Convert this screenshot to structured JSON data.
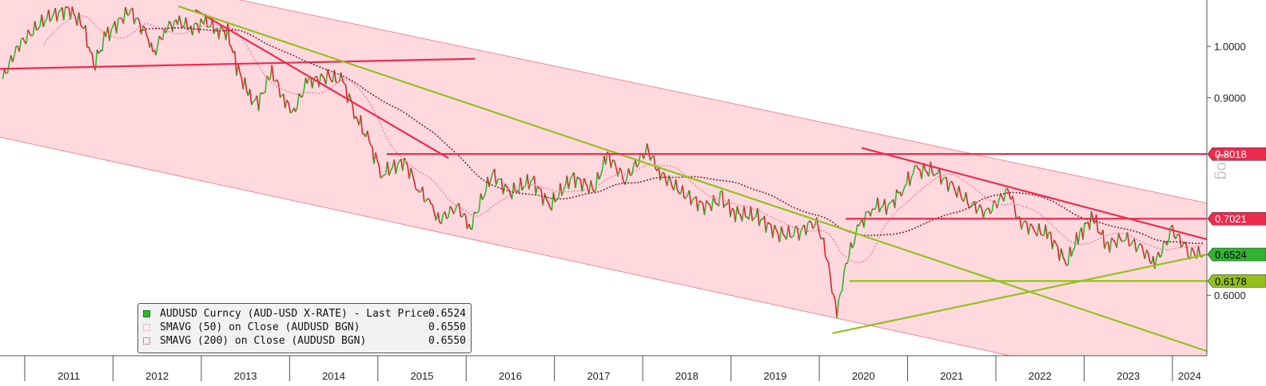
{
  "chart_data": {
    "type": "line",
    "title": "",
    "xlabel": "",
    "ylabel": "",
    "x_ticks": [
      "2011",
      "2012",
      "2013",
      "2014",
      "2015",
      "2016",
      "2017",
      "2018",
      "2019",
      "2020",
      "2021",
      "2022",
      "2023",
      "2024"
    ],
    "y_ticks": [
      "1.0000",
      "0.9000",
      "0.6000"
    ],
    "y_log_scale": true,
    "xlim": [
      2010.72,
      2024.39
    ],
    "ylim": [
      0.53,
      1.1
    ],
    "grid": false,
    "legend_position": "bottom-left",
    "side_label": "Log",
    "price_series": {
      "name": "AUDUSD Curncy (AUD-USD X-RATE) - Last Price",
      "color": "#2fb52f",
      "down_color": "#e0202a",
      "points": [
        [
          2010.75,
          0.935
        ],
        [
          2010.92,
          1.0
        ],
        [
          2011.25,
          1.06
        ],
        [
          2011.5,
          1.08
        ],
        [
          2011.67,
          1.04
        ],
        [
          2011.78,
          0.96
        ],
        [
          2011.92,
          1.02
        ],
        [
          2012.1,
          1.06
        ],
        [
          2012.2,
          1.075
        ],
        [
          2012.4,
          1.02
        ],
        [
          2012.45,
          0.98
        ],
        [
          2012.6,
          1.04
        ],
        [
          2012.75,
          1.05
        ],
        [
          2012.9,
          1.04
        ],
        [
          2013.05,
          1.05
        ],
        [
          2013.2,
          1.035
        ],
        [
          2013.3,
          1.03
        ],
        [
          2013.4,
          0.96
        ],
        [
          2013.55,
          0.9
        ],
        [
          2013.65,
          0.89
        ],
        [
          2013.8,
          0.95
        ],
        [
          2013.95,
          0.89
        ],
        [
          2014.05,
          0.875
        ],
        [
          2014.2,
          0.93
        ],
        [
          2014.45,
          0.94
        ],
        [
          2014.6,
          0.93
        ],
        [
          2014.75,
          0.87
        ],
        [
          2014.9,
          0.82
        ],
        [
          2015.05,
          0.77
        ],
        [
          2015.3,
          0.79
        ],
        [
          2015.45,
          0.75
        ],
        [
          2015.6,
          0.72
        ],
        [
          2015.7,
          0.7
        ],
        [
          2015.9,
          0.72
        ],
        [
          2016.05,
          0.69
        ],
        [
          2016.3,
          0.77
        ],
        [
          2016.5,
          0.74
        ],
        [
          2016.75,
          0.76
        ],
        [
          2016.95,
          0.72
        ],
        [
          2017.2,
          0.765
        ],
        [
          2017.45,
          0.745
        ],
        [
          2017.6,
          0.8
        ],
        [
          2017.8,
          0.76
        ],
        [
          2018.05,
          0.81
        ],
        [
          2018.2,
          0.77
        ],
        [
          2018.45,
          0.74
        ],
        [
          2018.7,
          0.72
        ],
        [
          2018.9,
          0.73
        ],
        [
          2019.05,
          0.71
        ],
        [
          2019.3,
          0.705
        ],
        [
          2019.55,
          0.68
        ],
        [
          2019.75,
          0.68
        ],
        [
          2019.95,
          0.7
        ],
        [
          2020.05,
          0.67
        ],
        [
          2020.2,
          0.575
        ],
        [
          2020.3,
          0.64
        ],
        [
          2020.45,
          0.69
        ],
        [
          2020.6,
          0.72
        ],
        [
          2020.8,
          0.72
        ],
        [
          2020.95,
          0.75
        ],
        [
          2021.1,
          0.775
        ],
        [
          2021.3,
          0.775
        ],
        [
          2021.5,
          0.75
        ],
        [
          2021.7,
          0.725
        ],
        [
          2021.9,
          0.71
        ],
        [
          2022.15,
          0.745
        ],
        [
          2022.25,
          0.7
        ],
        [
          2022.45,
          0.685
        ],
        [
          2022.6,
          0.68
        ],
        [
          2022.8,
          0.64
        ],
        [
          2022.95,
          0.68
        ],
        [
          2023.1,
          0.705
        ],
        [
          2023.25,
          0.665
        ],
        [
          2023.45,
          0.675
        ],
        [
          2023.65,
          0.66
        ],
        [
          2023.8,
          0.64
        ],
        [
          2024.0,
          0.685
        ],
        [
          2024.2,
          0.655
        ],
        [
          2024.35,
          0.6524
        ]
      ]
    },
    "moving_averages": [
      {
        "name": "SMAVG (50)  on Close (AUDUSD BGN)",
        "value": "0.6550",
        "color": "#f48aa2",
        "window": 3
      },
      {
        "name": "SMAVG (200)  on Close (AUDUSD BGN)",
        "value": "0.6550",
        "color": "#8c2430",
        "window": 10
      }
    ],
    "channel": {
      "fill": "#ffd9de",
      "edge": "#ef8a96",
      "upper": [
        [
          2010.72,
          1.22
        ],
        [
          2024.39,
          0.725
        ]
      ],
      "lower": [
        [
          2010.72,
          0.83
        ],
        [
          2023.9,
          0.495
        ]
      ]
    },
    "trend_lines": [
      {
        "name": "horizontal-resistance-2011-2014",
        "color": "#ee2b4e",
        "points": [
          [
            2010.72,
            0.955
          ],
          [
            2016.1,
            0.975
          ]
        ]
      },
      {
        "name": "downtrend-2013-2015",
        "color": "#ee2b4e",
        "points": [
          [
            2012.93,
            1.078
          ],
          [
            2015.8,
            0.795
          ]
        ]
      },
      {
        "name": "long-downtrend-green",
        "color": "#93c01f",
        "points": [
          [
            2012.74,
            1.086
          ],
          [
            2024.39,
            0.535
          ]
        ]
      },
      {
        "name": "downtrend-2021-2024",
        "color": "#ee2b4e",
        "points": [
          [
            2020.48,
            0.812
          ],
          [
            2024.39,
            0.673
          ]
        ]
      },
      {
        "name": "uptrend-green-2020-2024",
        "color": "#93c01f",
        "points": [
          [
            2020.15,
            0.555
          ],
          [
            2024.39,
            0.6524
          ]
        ]
      }
    ],
    "horizontal_levels": [
      {
        "value": 0.8018,
        "label": "0.8018",
        "color": "#ee2b4e",
        "x_start": 2015.1,
        "label_bg": "#ee2b4e",
        "text_color": "#ffffff"
      },
      {
        "value": 0.7021,
        "label": "0.7021",
        "color": "#ee2b4e",
        "x_start": 2020.3,
        "label_bg": "#ee2b4e",
        "text_color": "#ffffff"
      },
      {
        "value": 0.6178,
        "label": "0.6178",
        "color": "#93c01f",
        "x_start": 2020.34,
        "label_bg": "#93c01f",
        "text_color": "#000000"
      }
    ],
    "last_price": {
      "value": 0.6524,
      "label": "0.6524",
      "label_bg": "#2fb52f",
      "text_color": "#000000"
    },
    "legend": [
      {
        "label": "AUDUSD Curncy (AUD-USD X-RATE) - Last Price",
        "value": "0.6524",
        "color": "#2fb52f",
        "style": "solid"
      },
      {
        "label": "SMAVG (50)  on Close (AUDUSD BGN)",
        "value": "0.6550",
        "color": "#f48aa2",
        "style": "dotted"
      },
      {
        "label": "SMAVG (200)  on Close (AUDUSD BGN)",
        "value": "0.6550",
        "color": "#8c2430",
        "style": "dotted"
      }
    ]
  }
}
